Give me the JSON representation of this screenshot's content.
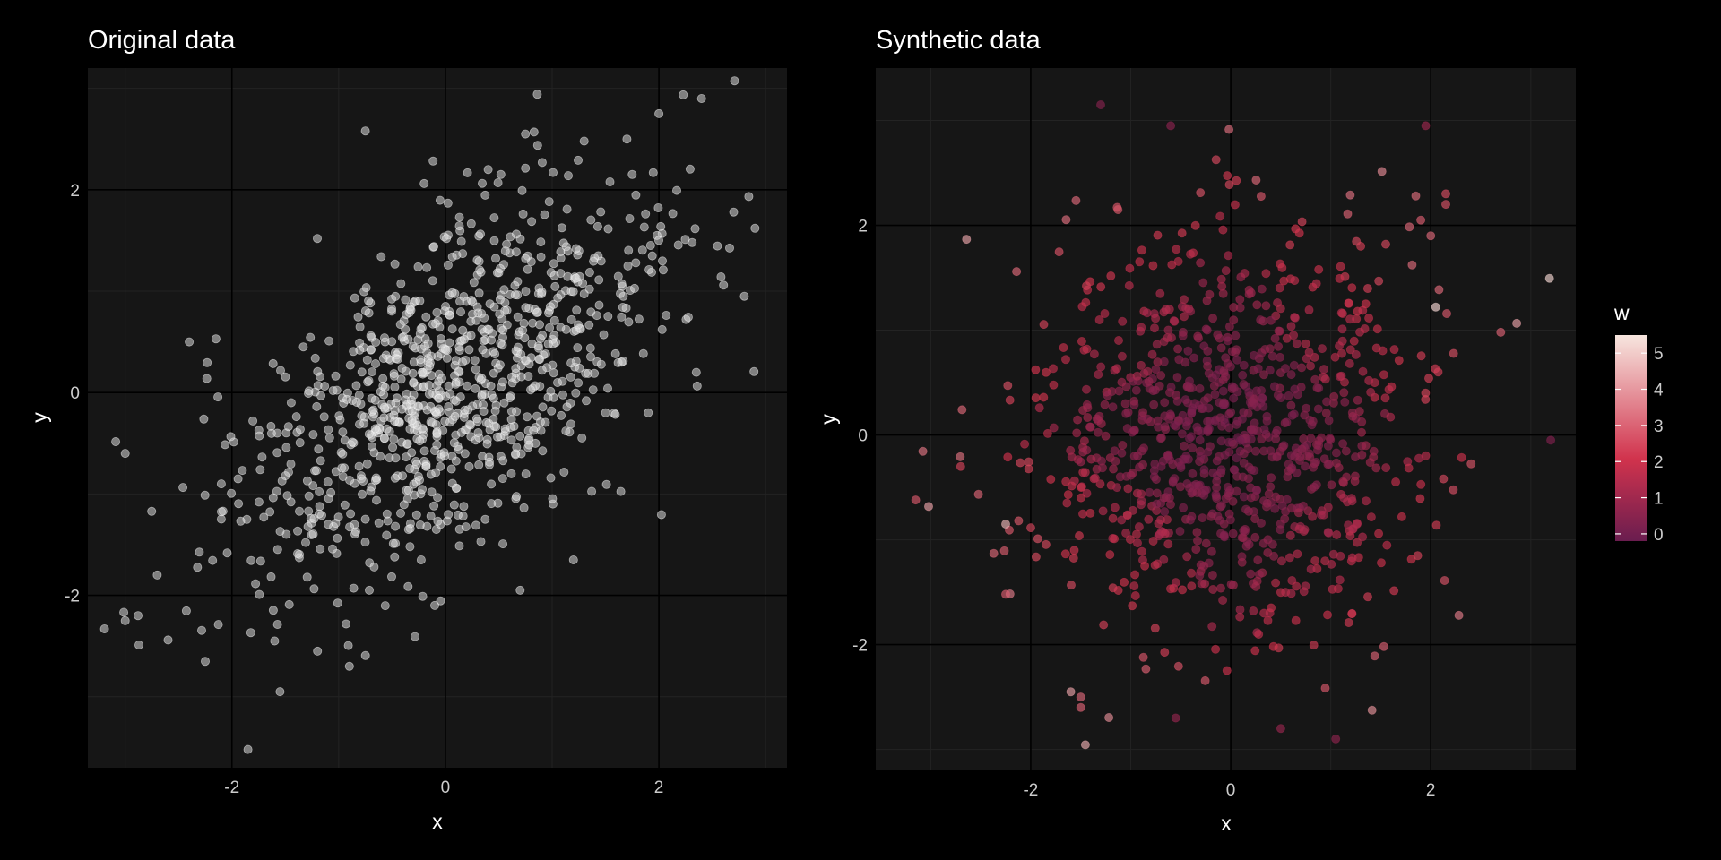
{
  "chart_data": [
    {
      "type": "scatter",
      "title": "Original data",
      "xlabel": "x",
      "ylabel": "y",
      "xlim": [
        -3.35,
        3.2
      ],
      "ylim": [
        -3.7,
        3.2
      ],
      "xticks": [
        -2,
        0,
        2
      ],
      "yticks": [
        -2,
        0,
        2
      ],
      "xtick_labels": [
        "-2",
        "0",
        "2"
      ],
      "ytick_labels": [
        "-2",
        "0",
        "2"
      ],
      "grid": true,
      "point_color": "#d9d9d9",
      "n_points": 1000,
      "correlation": 0.6,
      "seed": 12345,
      "points": [
        [
          -3.0,
          -0.6
        ],
        [
          -3.0,
          -2.25
        ],
        [
          -2.25,
          -2.65
        ],
        [
          -2.15,
          0.53
        ],
        [
          -1.85,
          -3.52
        ],
        [
          -1.55,
          -2.95
        ],
        [
          -0.75,
          2.58
        ],
        [
          0.4,
          2.2
        ],
        [
          0.75,
          2.55
        ],
        [
          1.7,
          2.5
        ],
        [
          2.0,
          2.75
        ],
        [
          2.4,
          2.9
        ],
        [
          2.9,
          1.62
        ],
        [
          2.8,
          0.95
        ],
        [
          -2.7,
          -1.8
        ],
        [
          -2.4,
          0.5
        ],
        [
          -2.1,
          -0.9
        ],
        [
          -1.6,
          -2.45
        ],
        [
          -0.9,
          -2.7
        ],
        [
          -0.1,
          -2.1
        ],
        [
          1.2,
          -1.65
        ],
        [
          1.65,
          0.3
        ],
        [
          1.9,
          -0.2
        ],
        [
          2.35,
          0.2
        ],
        [
          -1.2,
          1.52
        ],
        [
          0.7,
          -1.95
        ],
        [
          1.3,
          2.48
        ],
        [
          2.7,
          1.78
        ],
        [
          1.5,
          -0.2
        ],
        [
          1.75,
          2.15
        ]
      ]
    },
    {
      "type": "scatter",
      "title": "Synthetic data",
      "xlabel": "x",
      "ylabel": "y",
      "xlim": [
        -3.55,
        3.45
      ],
      "ylim": [
        -3.2,
        3.5
      ],
      "xticks": [
        -2,
        0,
        2
      ],
      "yticks": [
        -2,
        0,
        2
      ],
      "xtick_labels": [
        "-2",
        "0",
        "2"
      ],
      "ytick_labels": [
        "-2",
        "0",
        "2"
      ],
      "grid": true,
      "n_points": 1000,
      "seed": 67890,
      "color_variable": "w",
      "points": [
        [
          2.05,
          1.22,
          5.2
        ],
        [
          -1.6,
          -2.45,
          4.2
        ],
        [
          -2.25,
          -0.85,
          4.6
        ],
        [
          2.7,
          0.98,
          3.0
        ],
        [
          -1.5,
          -2.5,
          3.1
        ],
        [
          -1.5,
          -2.6,
          3.0
        ],
        [
          1.85,
          2.28,
          3.2
        ],
        [
          2.0,
          1.9,
          3.1
        ],
        [
          1.9,
          2.05,
          2.9
        ],
        [
          2.15,
          2.3,
          2.6
        ],
        [
          2.15,
          2.2,
          2.7
        ],
        [
          -3.15,
          -0.62,
          2.8
        ],
        [
          -2.25,
          -1.52,
          2.9
        ],
        [
          1.35,
          1.25,
          2.1
        ],
        [
          1.3,
          1.8,
          2.3
        ],
        [
          1.55,
          1.82,
          2.5
        ],
        [
          1.95,
          2.95,
          0.9
        ],
        [
          -1.3,
          3.15,
          0.4
        ],
        [
          -0.6,
          2.95,
          0.5
        ],
        [
          3.2,
          -0.05,
          0.3
        ],
        [
          1.05,
          -2.9,
          0.6
        ],
        [
          -0.55,
          -2.7,
          0.7
        ],
        [
          0.5,
          -2.8,
          0.8
        ],
        [
          -2.7,
          -0.3,
          2.4
        ]
      ],
      "legend": {
        "title": "w",
        "position": "right",
        "range": [
          -0.2,
          5.5
        ],
        "ticks": [
          0,
          1,
          2,
          3,
          4,
          5
        ],
        "tick_labels": [
          "0",
          "1",
          "2",
          "3",
          "4",
          "5"
        ],
        "color_low": "#6a1d4f",
        "color_mid": "#d1334d",
        "color_high": "#f7e6df"
      }
    }
  ],
  "colors": {
    "page_background": "#000000",
    "panel_background": "#161616",
    "grid_major": "#000000",
    "grid_minor": "#232323",
    "text": "#ffffff",
    "tick_text": "#cccccc",
    "legend_background": "#000000"
  }
}
